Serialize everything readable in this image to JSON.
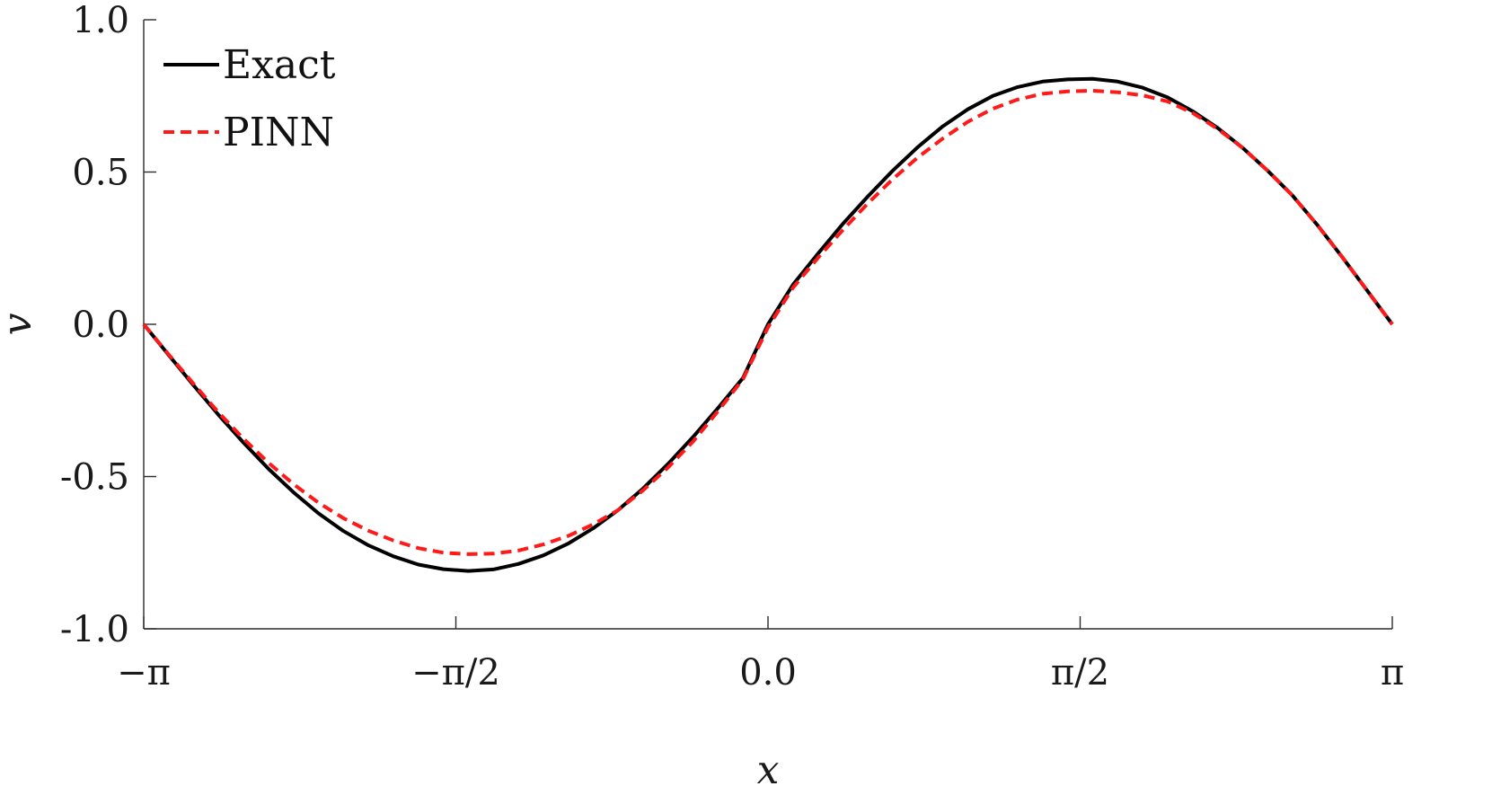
{
  "chart_data": {
    "type": "line",
    "title": "",
    "xlabel": "x",
    "ylabel": "v",
    "xlim": [
      -3.14159265,
      3.14159265
    ],
    "ylim": [
      -1.0,
      1.0
    ],
    "grid": false,
    "legend_position": "top-left",
    "x_ticks": [
      {
        "value": -3.14159265,
        "label": "−π"
      },
      {
        "value": -1.57079633,
        "label": "−π/2"
      },
      {
        "value": 0.0,
        "label": "0.0"
      },
      {
        "value": 1.57079633,
        "label": "π/2"
      },
      {
        "value": 3.14159265,
        "label": "π"
      }
    ],
    "y_ticks": [
      {
        "value": 1.0,
        "label": "1.0"
      },
      {
        "value": 0.5,
        "label": "0.5"
      },
      {
        "value": 0.0,
        "label": "0.0"
      },
      {
        "value": -0.5,
        "label": "-0.5"
      },
      {
        "value": -1.0,
        "label": "-1.0"
      }
    ],
    "x": [
      -3.1416,
      -3.0159,
      -2.8903,
      -2.7646,
      -2.6389,
      -2.5133,
      -2.3876,
      -2.2619,
      -2.1363,
      -2.0106,
      -1.885,
      -1.7593,
      -1.6336,
      -1.508,
      -1.3823,
      -1.2566,
      -1.131,
      -1.0053,
      -0.8796,
      -0.754,
      -0.6283,
      -0.5027,
      -0.377,
      -0.2513,
      -0.1257,
      0.0,
      0.1257,
      0.2513,
      0.377,
      0.5027,
      0.6283,
      0.754,
      0.8796,
      1.0053,
      1.131,
      1.2566,
      1.3823,
      1.508,
      1.6336,
      1.7593,
      1.885,
      2.0106,
      2.1363,
      2.2619,
      2.3876,
      2.5133,
      2.6389,
      2.7646,
      2.8903,
      3.0159,
      3.1416
    ],
    "series": [
      {
        "name": "Exact",
        "color": "#000000",
        "dash": "solid",
        "values": [
          0.0,
          -0.101,
          -0.201,
          -0.298,
          -0.389,
          -0.475,
          -0.552,
          -0.621,
          -0.679,
          -0.726,
          -0.762,
          -0.789,
          -0.804,
          -0.81,
          -0.805,
          -0.787,
          -0.759,
          -0.72,
          -0.67,
          -0.61,
          -0.539,
          -0.458,
          -0.37,
          -0.275,
          -0.176,
          0.0,
          0.13,
          0.232,
          0.33,
          0.42,
          0.505,
          0.582,
          0.65,
          0.706,
          0.75,
          0.779,
          0.797,
          0.804,
          0.806,
          0.797,
          0.777,
          0.745,
          0.7,
          0.645,
          0.58,
          0.505,
          0.423,
          0.326,
          0.22,
          0.11,
          0.0
        ]
      },
      {
        "name": "PINN",
        "color": "#ff1a1a",
        "dash": "dashed",
        "values": [
          0.0,
          -0.099,
          -0.196,
          -0.29,
          -0.376,
          -0.455,
          -0.525,
          -0.586,
          -0.637,
          -0.678,
          -0.71,
          -0.735,
          -0.75,
          -0.755,
          -0.753,
          -0.743,
          -0.723,
          -0.695,
          -0.657,
          -0.61,
          -0.545,
          -0.47,
          -0.385,
          -0.285,
          -0.18,
          -0.01,
          0.12,
          0.218,
          0.31,
          0.397,
          0.477,
          0.548,
          0.61,
          0.665,
          0.708,
          0.738,
          0.757,
          0.765,
          0.767,
          0.762,
          0.752,
          0.732,
          0.694,
          0.642,
          0.58,
          0.505,
          0.423,
          0.326,
          0.22,
          0.11,
          0.0
        ]
      }
    ]
  }
}
